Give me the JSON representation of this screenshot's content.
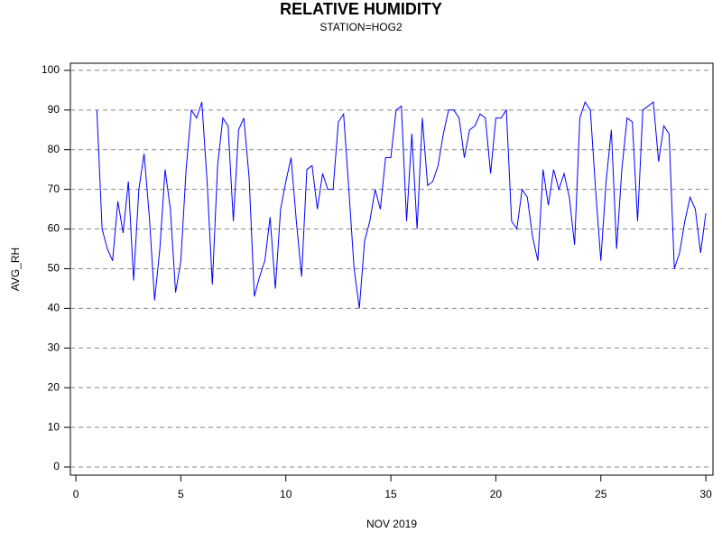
{
  "chart_data": {
    "type": "line",
    "title": "RELATIVE HUMIDITY",
    "subtitle": "STATION=HOG2",
    "x_label": "NOV 2019",
    "y_label": "AVG_RH",
    "color": "#0000ff",
    "grid": true,
    "xlim": [
      -0.26,
      30.34
    ],
    "ylim": [
      -2.05,
      101.8
    ],
    "xticks": [
      0,
      5,
      10,
      15,
      20,
      25,
      30
    ],
    "yticks": [
      0,
      10,
      20,
      30,
      40,
      50,
      60,
      70,
      80,
      90,
      100
    ],
    "x": [
      1,
      1.25,
      1.5,
      1.75,
      2,
      2.25,
      2.5,
      2.75,
      3,
      3.25,
      3.5,
      3.75,
      4,
      4.25,
      4.5,
      4.75,
      5,
      5.25,
      5.5,
      5.75,
      6,
      6.25,
      6.5,
      6.75,
      7,
      7.25,
      7.5,
      7.75,
      8,
      8.25,
      8.5,
      8.75,
      9,
      9.25,
      9.5,
      9.75,
      10,
      10.25,
      10.5,
      10.75,
      11,
      11.25,
      11.5,
      11.75,
      12,
      12.25,
      12.5,
      12.75,
      13,
      13.25,
      13.5,
      13.75,
      14,
      14.25,
      14.5,
      14.75,
      15,
      15.25,
      15.5,
      15.75,
      16,
      16.25,
      16.5,
      16.75,
      17,
      17.25,
      17.5,
      17.75,
      18,
      18.25,
      18.5,
      18.75,
      19,
      19.25,
      19.5,
      19.75,
      20,
      20.25,
      20.5,
      20.75,
      21,
      21.25,
      21.5,
      21.75,
      22,
      22.25,
      22.5,
      22.75,
      23,
      23.25,
      23.5,
      23.75,
      24,
      24.25,
      24.5,
      24.75,
      25,
      25.25,
      25.5,
      25.75,
      26,
      26.25,
      26.5,
      26.75,
      27,
      27.25,
      27.5,
      27.75,
      28,
      28.25,
      28.5,
      28.75,
      29,
      29.25,
      29.5,
      29.75,
      30
    ],
    "values": [
      90,
      60,
      55,
      52,
      67,
      59,
      72,
      47,
      70,
      79,
      63,
      42,
      55,
      75,
      65,
      44,
      52,
      75,
      90,
      88,
      92,
      72,
      46,
      76,
      88,
      86,
      62,
      85,
      88,
      73,
      43,
      48,
      52,
      63,
      45,
      65,
      72,
      78,
      62,
      48,
      75,
      76,
      65,
      74,
      70,
      70,
      87,
      89,
      70,
      50,
      40,
      57,
      62,
      70,
      65,
      78,
      78,
      90,
      91,
      62,
      84,
      60,
      88,
      71,
      72,
      76,
      84,
      90,
      90,
      88,
      78,
      85,
      86,
      89,
      88,
      74,
      88,
      88,
      90,
      62,
      60,
      70,
      68,
      58,
      52,
      75,
      66,
      75,
      70,
      74,
      68,
      56,
      88,
      92,
      90,
      70,
      52,
      72,
      85,
      55,
      75,
      88,
      87,
      62,
      90,
      91,
      92,
      77,
      86,
      84,
      50,
      54,
      62,
      68,
      65,
      54,
      64
    ]
  }
}
